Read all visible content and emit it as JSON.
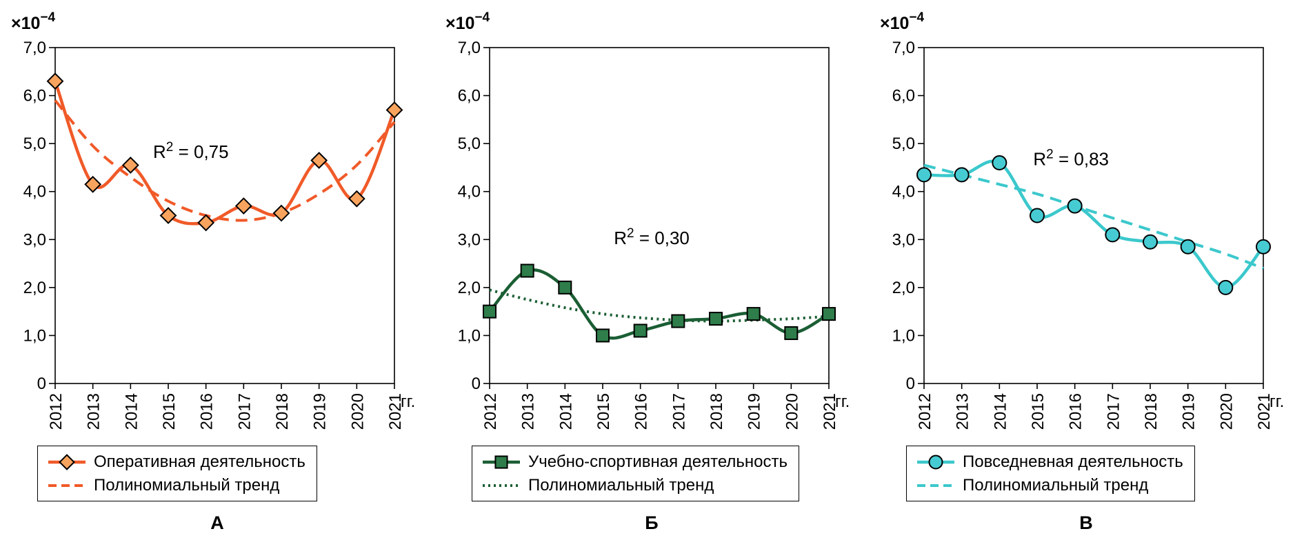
{
  "figure": {
    "background": "#ffffff",
    "y_axis_exponent": {
      "base": "×10",
      "sup": "−4"
    },
    "x_axis_unit": "гг."
  },
  "chart_data": [
    {
      "type": "line",
      "panel_label": "А",
      "x": [
        2012,
        2013,
        2014,
        2015,
        2016,
        2017,
        2018,
        2019,
        2020,
        2021
      ],
      "x_tick_labels": [
        "2012",
        "2013",
        "2014",
        "2015",
        "2016",
        "2017",
        "2018",
        "2019",
        "2020",
        "2021"
      ],
      "ylim": [
        0,
        7
      ],
      "y_tick_labels": [
        "0",
        "1,0",
        "2,0",
        "3,0",
        "4,0",
        "5,0",
        "6,0",
        "7,0"
      ],
      "y_scale_note": "all values are ×10⁻⁴",
      "grid": "off",
      "series": [
        {
          "name": "Оперативная деятельность",
          "style": "solid",
          "marker": "diamond",
          "line_color": "#F05A28",
          "marker_fill": "#F9A45E",
          "marker_stroke": "#000000",
          "values": [
            6.3,
            4.15,
            4.55,
            3.5,
            3.35,
            3.7,
            3.55,
            4.65,
            3.85,
            5.7
          ]
        },
        {
          "name": "Полиномиальный тренд",
          "style": "dashed",
          "marker": "none",
          "line_color": "#F05A28",
          "values": [
            5.9,
            4.95,
            4.3,
            3.8,
            3.5,
            3.4,
            3.55,
            3.95,
            4.55,
            5.45
          ]
        }
      ],
      "annotation": {
        "base": "R",
        "sup": "2",
        "rest": " = 0,75",
        "x_year": 2015.6,
        "y_value": 4.7
      },
      "legend": {
        "series_label": "Оперативная деятельность",
        "trend_label": "Полиномиальный тренд",
        "position": "below"
      }
    },
    {
      "type": "line",
      "panel_label": "Б",
      "x": [
        2012,
        2013,
        2014,
        2015,
        2016,
        2017,
        2018,
        2019,
        2020,
        2021
      ],
      "x_tick_labels": [
        "2012",
        "2013",
        "2014",
        "2015",
        "2016",
        "2017",
        "2018",
        "2019",
        "2020",
        "2021"
      ],
      "ylim": [
        0,
        7
      ],
      "y_tick_labels": [
        "0",
        "1,0",
        "2,0",
        "3,0",
        "4,0",
        "5,0",
        "6,0",
        "7,0"
      ],
      "y_scale_note": "all values are ×10⁻⁴",
      "grid": "off",
      "series": [
        {
          "name": "Учебно-спортивная деятельность",
          "style": "solid",
          "marker": "square",
          "line_color": "#1B5E34",
          "marker_fill": "#2E7D4A",
          "marker_stroke": "#000000",
          "values": [
            1.5,
            2.35,
            2.0,
            1.0,
            1.1,
            1.3,
            1.35,
            1.45,
            1.05,
            1.45
          ]
        },
        {
          "name": "Полиномиальный тренд",
          "style": "dotted",
          "marker": "none",
          "line_color": "#1B5E34",
          "values": [
            1.95,
            1.75,
            1.58,
            1.45,
            1.37,
            1.32,
            1.3,
            1.32,
            1.35,
            1.4
          ]
        }
      ],
      "annotation": {
        "base": "R",
        "sup": "2",
        "rest": " = 0,30",
        "x_year": 2016.3,
        "y_value": 2.9
      },
      "legend": {
        "series_label": "Учебно-спортивная деятельность",
        "trend_label": "Полиномиальный тренд",
        "position": "below"
      }
    },
    {
      "type": "line",
      "panel_label": "В",
      "x": [
        2012,
        2013,
        2014,
        2015,
        2016,
        2017,
        2018,
        2019,
        2020,
        2021
      ],
      "x_tick_labels": [
        "2012",
        "2013",
        "2014",
        "2015",
        "2016",
        "2017",
        "2018",
        "2019",
        "2020",
        "2021"
      ],
      "ylim": [
        0,
        7
      ],
      "y_tick_labels": [
        "0",
        "1,0",
        "2,0",
        "3,0",
        "4,0",
        "5,0",
        "6,0",
        "7,0"
      ],
      "y_scale_note": "all values are ×10⁻⁴",
      "grid": "off",
      "series": [
        {
          "name": "Повседневная деятельность",
          "style": "solid",
          "marker": "circle",
          "line_color": "#3BC8CC",
          "marker_fill": "#47CBD3",
          "marker_stroke": "#000000",
          "values": [
            4.35,
            4.35,
            4.6,
            3.5,
            3.7,
            3.1,
            2.95,
            2.85,
            2.0,
            2.85
          ]
        },
        {
          "name": "Полиномиальный тренд",
          "style": "dashed",
          "marker": "none",
          "line_color": "#3BC8CC",
          "values": [
            4.55,
            4.35,
            4.15,
            3.95,
            3.7,
            3.45,
            3.2,
            2.95,
            2.7,
            2.4
          ]
        }
      ],
      "annotation": {
        "base": "R",
        "sup": "2",
        "rest": " = 0,83",
        "x_year": 2015.9,
        "y_value": 4.55
      },
      "legend": {
        "series_label": "Повседневная деятельность",
        "trend_label": "Полиномиальный тренд",
        "position": "below"
      }
    }
  ]
}
